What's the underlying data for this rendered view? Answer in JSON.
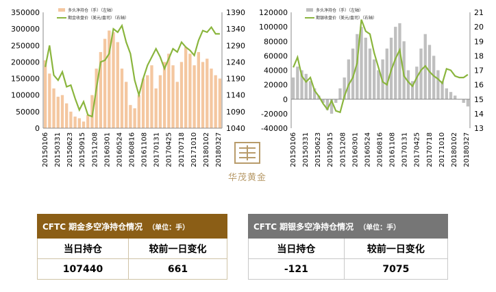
{
  "chart_data": [
    {
      "type": "bar+line",
      "legend": {
        "placement": "top-left",
        "entries": [
          "多头净持仓（手）（左轴）",
          "期金收盘价（美元/盎司）（右轴）"
        ]
      },
      "ylim_left": [
        0,
        350000
      ],
      "ylim_right": [
        1040,
        1390
      ],
      "y_ticks_left": [
        "350000",
        "300000",
        "250000",
        "200000",
        "150000",
        "100000",
        "50000",
        "0"
      ],
      "y_ticks_right": [
        "1390",
        "1340",
        "1290",
        "1240",
        "1190",
        "1140",
        "1090",
        "1040"
      ],
      "x_tick_labels": [
        "20150106",
        "20150331",
        "20150623",
        "20150915",
        "20151208",
        "20160301",
        "20160524",
        "20160816",
        "20161108",
        "20170131",
        "20170425",
        "20170718",
        "20171010",
        "20180102",
        "20180327"
      ],
      "series": [
        {
          "name": "多头净持仓（手）（左轴）",
          "type": "bar",
          "axis": "left",
          "color": "#f4c7a0",
          "values": [
            205000,
            165000,
            120000,
            95000,
            100000,
            75000,
            50000,
            35000,
            30000,
            20000,
            40000,
            100000,
            180000,
            230000,
            270000,
            295000,
            290000,
            260000,
            180000,
            140000,
            70000,
            60000,
            100000,
            150000,
            160000,
            190000,
            120000,
            160000,
            200000,
            225000,
            190000,
            140000,
            200000,
            245000,
            225000,
            190000,
            230000,
            200000,
            210000,
            180000,
            160000,
            150000
          ]
        },
        {
          "name": "期金收盘价（美元/盎司）（右轴）",
          "type": "line",
          "axis": "right",
          "color": "#8ab53d",
          "values": [
            1225,
            1290,
            1200,
            1185,
            1210,
            1165,
            1170,
            1130,
            1095,
            1120,
            1080,
            1075,
            1160,
            1240,
            1245,
            1265,
            1340,
            1330,
            1350,
            1300,
            1265,
            1185,
            1140,
            1190,
            1230,
            1255,
            1280,
            1255,
            1220,
            1250,
            1280,
            1270,
            1300,
            1285,
            1275,
            1260,
            1305,
            1335,
            1330,
            1345,
            1325,
            1325
          ]
        }
      ]
    },
    {
      "type": "bar+line",
      "legend": {
        "placement": "top-left",
        "entries": [
          "多头净持仓（手）（左轴）",
          "期银收盘价（美元/盎司）（右轴）"
        ]
      },
      "ylim_left": [
        -40000,
        120000
      ],
      "ylim_right": [
        13,
        21
      ],
      "y_ticks_left": [
        "120000",
        "100000",
        "80000",
        "60000",
        "40000",
        "20000",
        "0",
        "-20000",
        "-40000"
      ],
      "y_ticks_right": [
        "21",
        "20",
        "19",
        "18",
        "17",
        "16",
        "15",
        "14",
        "13"
      ],
      "x_tick_labels": [
        "20150106",
        "20150331",
        "20150623",
        "20150915",
        "20151208",
        "20160301",
        "20160524",
        "20160816",
        "20161108",
        "20170131",
        "20170425",
        "20170718",
        "20171010",
        "20180102",
        "20180327"
      ],
      "series": [
        {
          "name": "多头净持仓（手）（左轴）",
          "type": "bar",
          "axis": "left",
          "color": "#bfbfbf",
          "values": [
            30000,
            45000,
            40000,
            35000,
            25000,
            15000,
            5000,
            -5000,
            -15000,
            -20000,
            -5000,
            15000,
            30000,
            55000,
            70000,
            90000,
            100000,
            85000,
            70000,
            55000,
            40000,
            55000,
            70000,
            85000,
            100000,
            105000,
            80000,
            40000,
            25000,
            45000,
            70000,
            90000,
            75000,
            60000,
            40000,
            25000,
            15000,
            10000,
            5000,
            0,
            -5000,
            -10000
          ]
        },
        {
          "name": "期银收盘价（美元/盎司）（右轴）",
          "type": "line",
          "axis": "right",
          "color": "#8ab53d",
          "values": [
            17.2,
            17.9,
            16.6,
            16.2,
            16.5,
            15.6,
            15.2,
            14.7,
            14.3,
            14.9,
            14.2,
            14.1,
            15.2,
            16.0,
            16.5,
            17.5,
            20.5,
            19.7,
            19.5,
            18.2,
            17.2,
            16.2,
            16.0,
            17.0,
            17.8,
            18.4,
            16.6,
            16.2,
            15.9,
            16.5,
            17.0,
            17.3,
            16.9,
            16.6,
            16.4,
            16.1,
            17.1,
            17.0,
            16.6,
            16.5,
            16.5,
            16.7
          ]
        }
      ]
    }
  ],
  "logo": {
    "text": "华茂黄金"
  },
  "gold_table": {
    "title": "CFTC 期金多空净持仓情况",
    "unit": "（单位：手）",
    "col1_header": "当日持仓",
    "col2_header": "较前一日变化",
    "holding": "107440",
    "change": "661"
  },
  "silver_table": {
    "title": "CFTC 期银多空净持仓情况",
    "unit": "（单位：手）",
    "col1_header": "当日持仓",
    "col2_header": "较前一日变化",
    "holding": "-121",
    "change": "7075"
  },
  "colors": {
    "gold_header": "#8b5e16",
    "silver_header": "#767676",
    "line": "#8ab53d",
    "gold_bar": "#f4c7a0",
    "silver_bar": "#bfbfbf",
    "logo": "#b89b6a"
  }
}
